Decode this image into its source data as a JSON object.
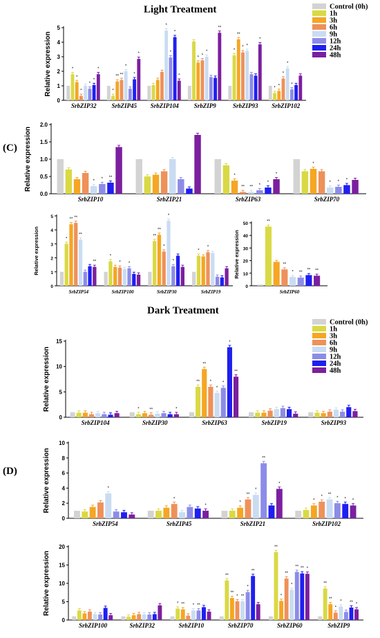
{
  "titles": {
    "light": "Light Treatment",
    "dark": "Dark Treatment"
  },
  "panel_labels": {
    "c": "(C)",
    "d": "(D)"
  },
  "legend": {
    "entries": [
      "Control (0h)",
      "1h",
      "3h",
      "6h",
      "9h",
      "12h",
      "24h",
      "48h"
    ],
    "colors": [
      "#d3d3d3",
      "#d9d945",
      "#f5a623",
      "#ee915a",
      "#c9dcf2",
      "#8c8ce8",
      "#1f1ff0",
      "#7b1f9f"
    ]
  },
  "chart_data": [
    {
      "type": "bar",
      "ylabel": "Relative expression",
      "ylim": [
        0,
        5
      ],
      "yticks": [
        0,
        1,
        2,
        3,
        4,
        5
      ],
      "categories": [
        "SrbZIP32",
        "SrbZIP45",
        "SrbZIP104",
        "SrbZIP9",
        "SrbZIP93",
        "SrbZIP102"
      ],
      "values": [
        [
          1,
          1.8,
          1.25,
          0.3,
          1.0,
          0.8,
          1.05,
          1.8
        ],
        [
          1,
          0.3,
          1.3,
          1.4,
          2.0,
          0.8,
          1.45,
          2.85
        ],
        [
          1,
          1.05,
          1.4,
          1.95,
          4.8,
          2.95,
          4.35,
          1.35
        ],
        [
          1,
          4.05,
          2.6,
          2.75,
          3.0,
          1.6,
          1.55,
          4.65
        ],
        [
          1,
          3.1,
          4.2,
          3.3,
          3.4,
          1.8,
          1.7,
          3.85
        ],
        [
          1,
          0.5,
          0.65,
          1.5,
          2.2,
          0.75,
          1.05,
          1.7
        ]
      ],
      "marks": [
        [
          "",
          "*",
          "*",
          "*",
          "",
          "*",
          "*",
          "*"
        ],
        [
          "",
          "*",
          "**",
          "**",
          "*",
          "",
          "*",
          "*"
        ],
        [
          "",
          "",
          "",
          "",
          "*",
          "*",
          "*",
          "*"
        ],
        [
          "",
          "",
          "*",
          "*",
          "*",
          "",
          "",
          "**"
        ],
        [
          "",
          "*",
          "**",
          "*",
          "*",
          "",
          "",
          "*"
        ],
        [
          "",
          "*",
          "*",
          "*",
          "*",
          "*",
          "",
          ""
        ]
      ]
    },
    {
      "type": "bar",
      "ylabel": "Relative expression",
      "ylim": [
        0,
        2.0
      ],
      "yticks": [
        "0.0",
        "0.5",
        "1.0",
        "1.5",
        "2.0"
      ],
      "categories": [
        "SrbZIP10",
        "SrbZIP21",
        "SrbZIP63",
        "SrbZIP70"
      ],
      "values": [
        [
          1,
          0.7,
          0.42,
          0.6,
          0.22,
          0.28,
          0.32,
          1.35
        ],
        [
          1,
          0.5,
          0.55,
          0.65,
          1.0,
          0.42,
          0.15,
          1.7
        ],
        [
          1,
          0.82,
          0.38,
          0.05,
          0.05,
          0.1,
          0.18,
          0.42
        ],
        [
          1,
          0.65,
          0.72,
          0.65,
          0.18,
          0.2,
          0.25,
          0.4
        ]
      ],
      "marks": [
        [
          "",
          "",
          "",
          "",
          "*",
          "*",
          "**",
          ""
        ],
        [
          "",
          "",
          "",
          "",
          "",
          "",
          "",
          ""
        ],
        [
          "",
          "",
          "*",
          "**",
          "**",
          "*",
          "*",
          "*"
        ],
        [
          "",
          "",
          "*",
          "",
          "*",
          "*",
          "*",
          ""
        ]
      ]
    },
    {
      "type": "bar",
      "ylabel": "Relative expression",
      "ylim": [
        0,
        5
      ],
      "yticks": [
        0,
        1,
        2,
        3,
        4,
        5
      ],
      "categories": [
        "SrbZIP54",
        "SrbZIP100",
        "SrbZIP30",
        "SrbZIP19"
      ],
      "values": [
        [
          1,
          3.0,
          4.4,
          4.5,
          3.3,
          1.0,
          1.4,
          1.35
        ],
        [
          1,
          1.75,
          1.35,
          1.3,
          1.2,
          1.25,
          0.85,
          0.8
        ],
        [
          1,
          3.2,
          3.65,
          2.45,
          4.65,
          1.4,
          2.15,
          1.35
        ],
        [
          1,
          2.15,
          2.1,
          2.4,
          2.35,
          0.65,
          0.6,
          1.25
        ]
      ],
      "marks": [
        [
          "",
          "*",
          "**",
          "**",
          "**",
          "",
          "",
          "**"
        ],
        [
          "",
          "*",
          "",
          "*",
          "",
          "*",
          "",
          ""
        ],
        [
          "",
          "**",
          "**",
          "*",
          "*",
          "*",
          "",
          ""
        ],
        [
          "",
          "*",
          "",
          "*",
          "",
          "",
          "",
          ""
        ]
      ]
    },
    {
      "type": "bar",
      "ylabel": "Relative expression",
      "ylim": [
        0,
        50
      ],
      "yticks": [
        0,
        10,
        20,
        30,
        40,
        50
      ],
      "categories": [
        "SrbZIP60"
      ],
      "values": [
        [
          1,
          47,
          19,
          13,
          7,
          6.5,
          8.5,
          8
        ]
      ],
      "marks": [
        [
          "",
          "**",
          "",
          "**",
          "*",
          "**",
          "**",
          "**"
        ]
      ]
    },
    {
      "type": "bar",
      "ylabel": "Relative expression",
      "ylim": [
        0,
        15
      ],
      "yticks": [
        0,
        5,
        10,
        15
      ],
      "categories": [
        "SrbZIP104",
        "SrbZIP30",
        "SrbZIP63",
        "SrbZIP19",
        "SrbZIP93"
      ],
      "values": [
        [
          1,
          0.9,
          0.9,
          0.6,
          0.8,
          0.6,
          0.5,
          0.8
        ],
        [
          1,
          0.6,
          0.8,
          0.5,
          0.7,
          0.8,
          0.6,
          0.6
        ],
        [
          1,
          6.0,
          9.5,
          6.0,
          4.8,
          5.8,
          13.8,
          8.0
        ],
        [
          1,
          0.9,
          0.9,
          1.3,
          1.6,
          1.8,
          1.6,
          0.7
        ],
        [
          1,
          0.9,
          0.8,
          1.1,
          1.5,
          1.1,
          2.0,
          1.2
        ]
      ],
      "marks": [
        [
          "",
          "",
          "",
          "",
          "",
          "",
          "",
          ""
        ],
        [
          "",
          "*",
          "",
          "**",
          "",
          "",
          "",
          "*"
        ],
        [
          "",
          "**",
          "**",
          "*",
          "*",
          "*",
          "*",
          "**"
        ],
        [
          "",
          "",
          "",
          "",
          "",
          "",
          "",
          ""
        ],
        [
          "",
          "",
          "",
          "",
          "",
          "",
          "",
          ""
        ]
      ]
    },
    {
      "type": "bar",
      "ylabel": "Relative expression",
      "ylim": [
        0,
        10
      ],
      "yticks": [
        0,
        2,
        4,
        6,
        8,
        10
      ],
      "categories": [
        "SrbZIP54",
        "SrbZIP45",
        "SrbZIP21",
        "SrbZIP102"
      ],
      "values": [
        [
          1,
          0.9,
          1.5,
          2.1,
          3.3,
          0.9,
          0.8,
          0.5
        ],
        [
          1,
          1.0,
          1.4,
          1.9,
          0.8,
          1.5,
          1.3,
          1.0
        ],
        [
          1,
          1.0,
          1.4,
          2.5,
          3.1,
          7.3,
          1.7,
          3.9
        ],
        [
          1,
          1.1,
          1.7,
          2.2,
          2.5,
          2.0,
          1.9,
          1.7
        ]
      ],
      "marks": [
        [
          "",
          "",
          "",
          "",
          "*",
          "",
          "",
          ""
        ],
        [
          "",
          "",
          "",
          "*",
          "",
          "",
          "",
          "*"
        ],
        [
          "",
          "",
          "*",
          "**",
          "*",
          "**",
          "",
          "*"
        ],
        [
          "",
          "",
          "*",
          "*",
          "**",
          "*",
          "*",
          "*"
        ]
      ]
    },
    {
      "type": "bar",
      "ylabel": "Relative expression",
      "ylim": [
        0,
        20
      ],
      "yticks": [
        0,
        5,
        10,
        15,
        20
      ],
      "categories": [
        "SrbZIP100",
        "SrbZIP32",
        "SrbZIP10",
        "SrbZIP70",
        "SrbZIP60",
        "SrbZIP9"
      ],
      "values": [
        [
          1,
          2.6,
          1.8,
          2.3,
          1.6,
          1.5,
          3.3,
          1.3
        ],
        [
          1,
          0.9,
          1.3,
          1.6,
          1.5,
          1.5,
          1.6,
          4.0
        ],
        [
          1,
          3.1,
          2.9,
          1.2,
          2.6,
          2.6,
          3.5,
          2.3
        ],
        [
          1,
          10.8,
          6.0,
          5.1,
          5.1,
          7.6,
          12.0,
          4.3
        ],
        [
          1,
          18.5,
          5.2,
          11.3,
          8.2,
          13.1,
          12.7,
          12.6
        ],
        [
          1,
          8.6,
          4.3,
          2.0,
          3.7,
          2.2,
          3.4,
          2.9
        ]
      ],
      "marks": [
        [
          "",
          "",
          "",
          "",
          "",
          "",
          "",
          ""
        ],
        [
          "",
          "",
          "",
          "",
          "",
          "",
          "",
          ""
        ],
        [
          "",
          "*",
          "**",
          "",
          "*",
          "**",
          "",
          ""
        ],
        [
          "",
          "**",
          "**",
          "*",
          "**",
          "*",
          "**",
          ""
        ],
        [
          "",
          "**",
          "*",
          "**",
          "*",
          "**",
          "**",
          "*"
        ],
        [
          "",
          "**",
          "**",
          "*",
          "*",
          "",
          "**",
          "*"
        ]
      ]
    }
  ]
}
